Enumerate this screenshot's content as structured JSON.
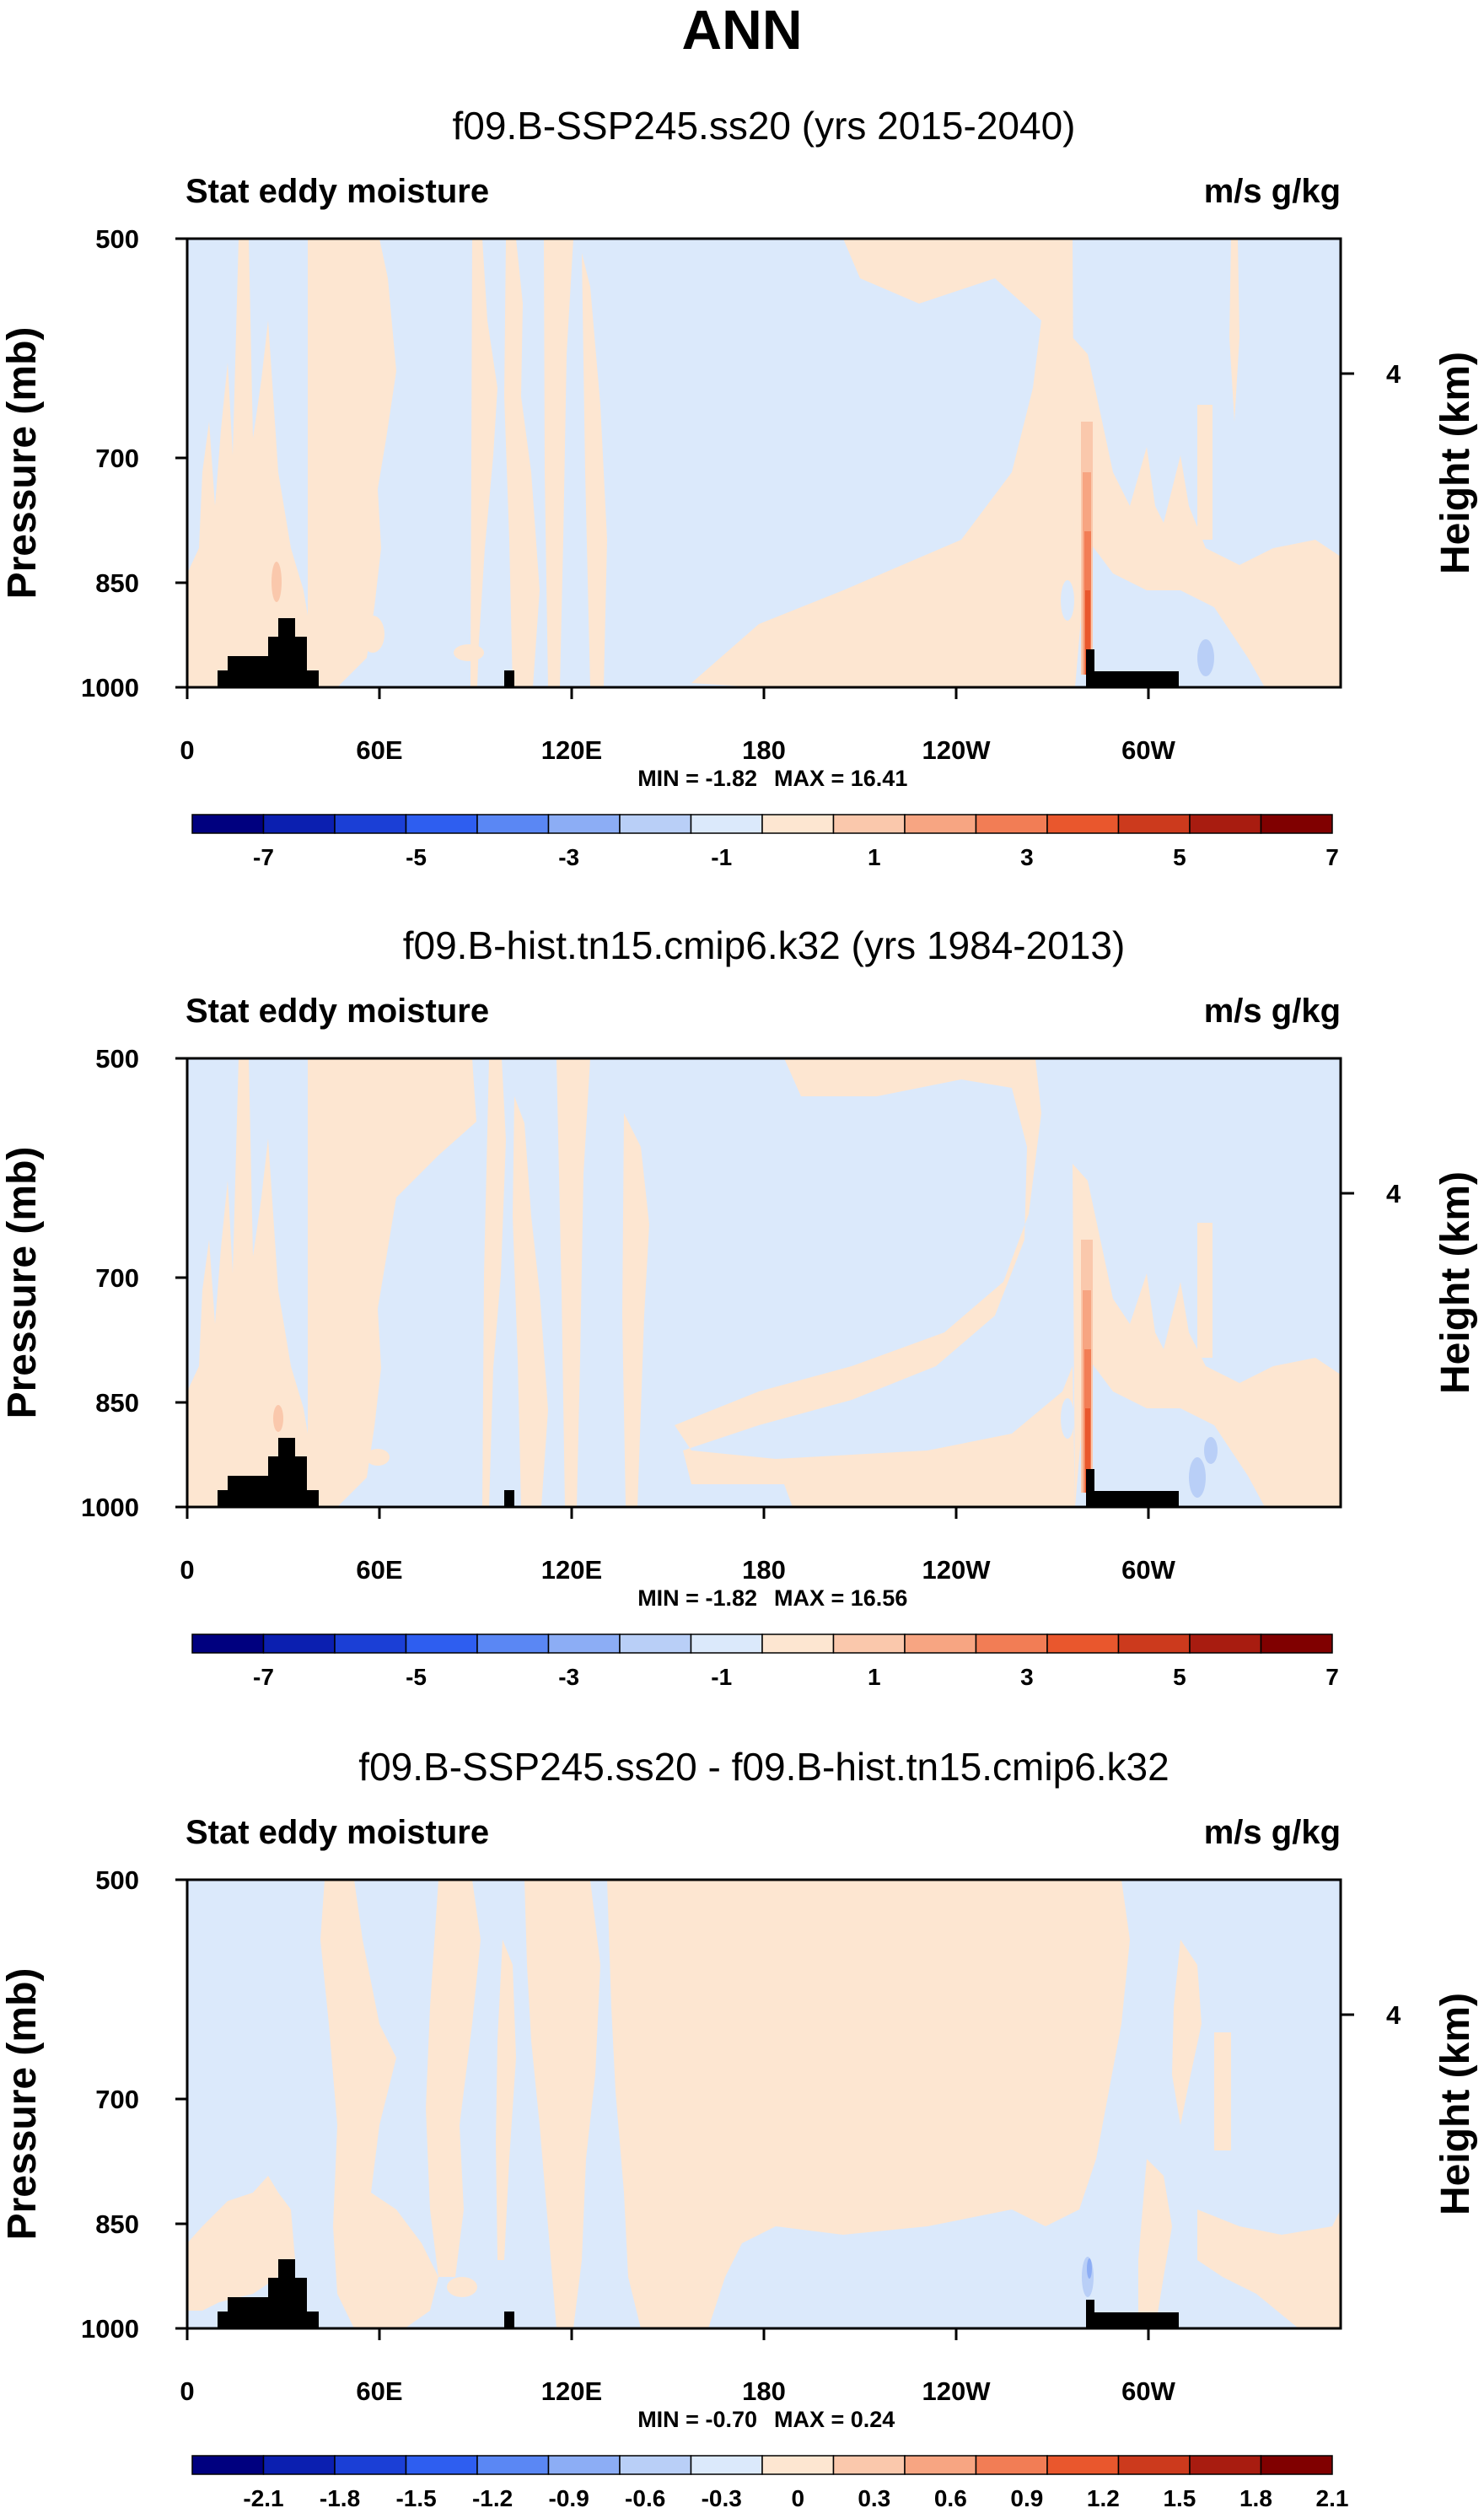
{
  "figure_title": "ANN",
  "colors": {
    "background": "#ffffff",
    "axis": "#000000",
    "topography": "#000000"
  },
  "chart_data": [
    {
      "type": "heatmap",
      "title": "f09.B-SSP245.ss20 (yrs 2015-2040)",
      "left_label": "Stat eddy moisture",
      "right_label": "m/s g/kg",
      "ylabel": "Pressure (mb)",
      "ylabel_right": "Height (km)",
      "xticks": [
        "0",
        "60E",
        "120E",
        "180",
        "120W",
        "60W"
      ],
      "yticks": [
        "500",
        "700",
        "850",
        "1000"
      ],
      "yticks_right": [
        "4"
      ],
      "ylim": [
        1000,
        500
      ],
      "min_label": "MIN =  -1.82",
      "max_label": "MAX =  16.41",
      "colorbar_labels": [
        "-7",
        "-5",
        "-3",
        "-1",
        "1",
        "3",
        "5",
        "7"
      ],
      "colorbar_colors": [
        "#00007f",
        "#0b1fb0",
        "#1b3fd6",
        "#2e5ef0",
        "#5a87f4",
        "#8cadf5",
        "#b9cff7",
        "#dbe9fb",
        "#fde6d1",
        "#fac8ac",
        "#f7a582",
        "#f27d55",
        "#e9572d",
        "#cc3a1d",
        "#a81c10",
        "#800000"
      ]
    },
    {
      "type": "heatmap",
      "title": "f09.B-hist.tn15.cmip6.k32 (yrs 1984-2013)",
      "left_label": "Stat eddy moisture",
      "right_label": "m/s g/kg",
      "ylabel": "Pressure (mb)",
      "ylabel_right": "Height (km)",
      "xticks": [
        "0",
        "60E",
        "120E",
        "180",
        "120W",
        "60W"
      ],
      "yticks": [
        "500",
        "700",
        "850",
        "1000"
      ],
      "yticks_right": [
        "4"
      ],
      "ylim": [
        1000,
        500
      ],
      "min_label": "MIN =  -1.82",
      "max_label": "MAX =  16.56",
      "colorbar_labels": [
        "-7",
        "-5",
        "-3",
        "-1",
        "1",
        "3",
        "5",
        "7"
      ],
      "colorbar_colors": [
        "#00007f",
        "#0b1fb0",
        "#1b3fd6",
        "#2e5ef0",
        "#5a87f4",
        "#8cadf5",
        "#b9cff7",
        "#dbe9fb",
        "#fde6d1",
        "#fac8ac",
        "#f7a582",
        "#f27d55",
        "#e9572d",
        "#cc3a1d",
        "#a81c10",
        "#800000"
      ]
    },
    {
      "type": "heatmap",
      "title": "f09.B-SSP245.ss20 - f09.B-hist.tn15.cmip6.k32",
      "left_label": "Stat eddy moisture",
      "right_label": "m/s g/kg",
      "ylabel": "Pressure (mb)",
      "ylabel_right": "Height (km)",
      "xticks": [
        "0",
        "60E",
        "120E",
        "180",
        "120W",
        "60W"
      ],
      "yticks": [
        "500",
        "700",
        "850",
        "1000"
      ],
      "yticks_right": [
        "4"
      ],
      "ylim": [
        1000,
        500
      ],
      "min_label": "MIN =  -0.70",
      "max_label": "MAX =   0.24",
      "colorbar_labels": [
        "-2.1",
        "-1.8",
        "-1.5",
        "-1.2",
        "-0.9",
        "-0.6",
        "-0.3",
        "0",
        "0.3",
        "0.6",
        "0.9",
        "1.2",
        "1.5",
        "1.8",
        "2.1"
      ],
      "colorbar_colors": [
        "#00007f",
        "#0b1fb0",
        "#1b3fd6",
        "#2e5ef0",
        "#5a87f4",
        "#8cadf5",
        "#b9cff7",
        "#dbe9fb",
        "#fde6d1",
        "#fac8ac",
        "#f7a582",
        "#f27d55",
        "#e9572d",
        "#cc3a1d",
        "#a81c10",
        "#800000"
      ]
    }
  ]
}
